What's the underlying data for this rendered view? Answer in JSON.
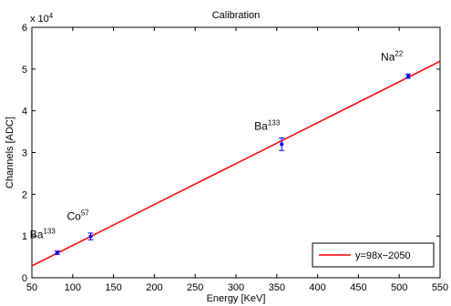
{
  "chart_data": {
    "type": "scatter",
    "title": "Calibration",
    "xlabel": "Energy [KeV]",
    "ylabel": "Channels [ADC]",
    "y_multiplier_label": "x 10",
    "y_multiplier_exp": "4",
    "xlim": [
      50,
      550
    ],
    "ylim": [
      0,
      6
    ],
    "x_ticks": [
      50,
      100,
      150,
      200,
      250,
      300,
      350,
      400,
      450,
      500,
      550
    ],
    "y_ticks": [
      0,
      1,
      2,
      3,
      4,
      5,
      6
    ],
    "grid": false,
    "legend_placement": "bottom-right",
    "colors": {
      "line": "#ff0000",
      "points": "#0000ff",
      "axes": "#000000"
    },
    "series": [
      {
        "type": "scatter-errorbar",
        "x": [
          81,
          122,
          356,
          511
        ],
        "y": [
          0.6,
          0.99,
          3.2,
          4.83
        ],
        "err": [
          0.04,
          0.08,
          0.15,
          0.05
        ]
      },
      {
        "name": "y=98x−2050",
        "type": "line",
        "x": [
          50,
          550
        ],
        "y": [
          0.285,
          5.185
        ]
      }
    ],
    "annotations": [
      {
        "text": "Ba",
        "sup": "133",
        "x": 81,
        "y": 0.6
      },
      {
        "text": "Co",
        "sup": "57",
        "x": 122,
        "y": 0.99
      },
      {
        "text": "Ba",
        "sup": "133",
        "x": 356,
        "y": 3.2
      },
      {
        "text": "Na",
        "sup": "22",
        "x": 511,
        "y": 4.83
      }
    ]
  }
}
